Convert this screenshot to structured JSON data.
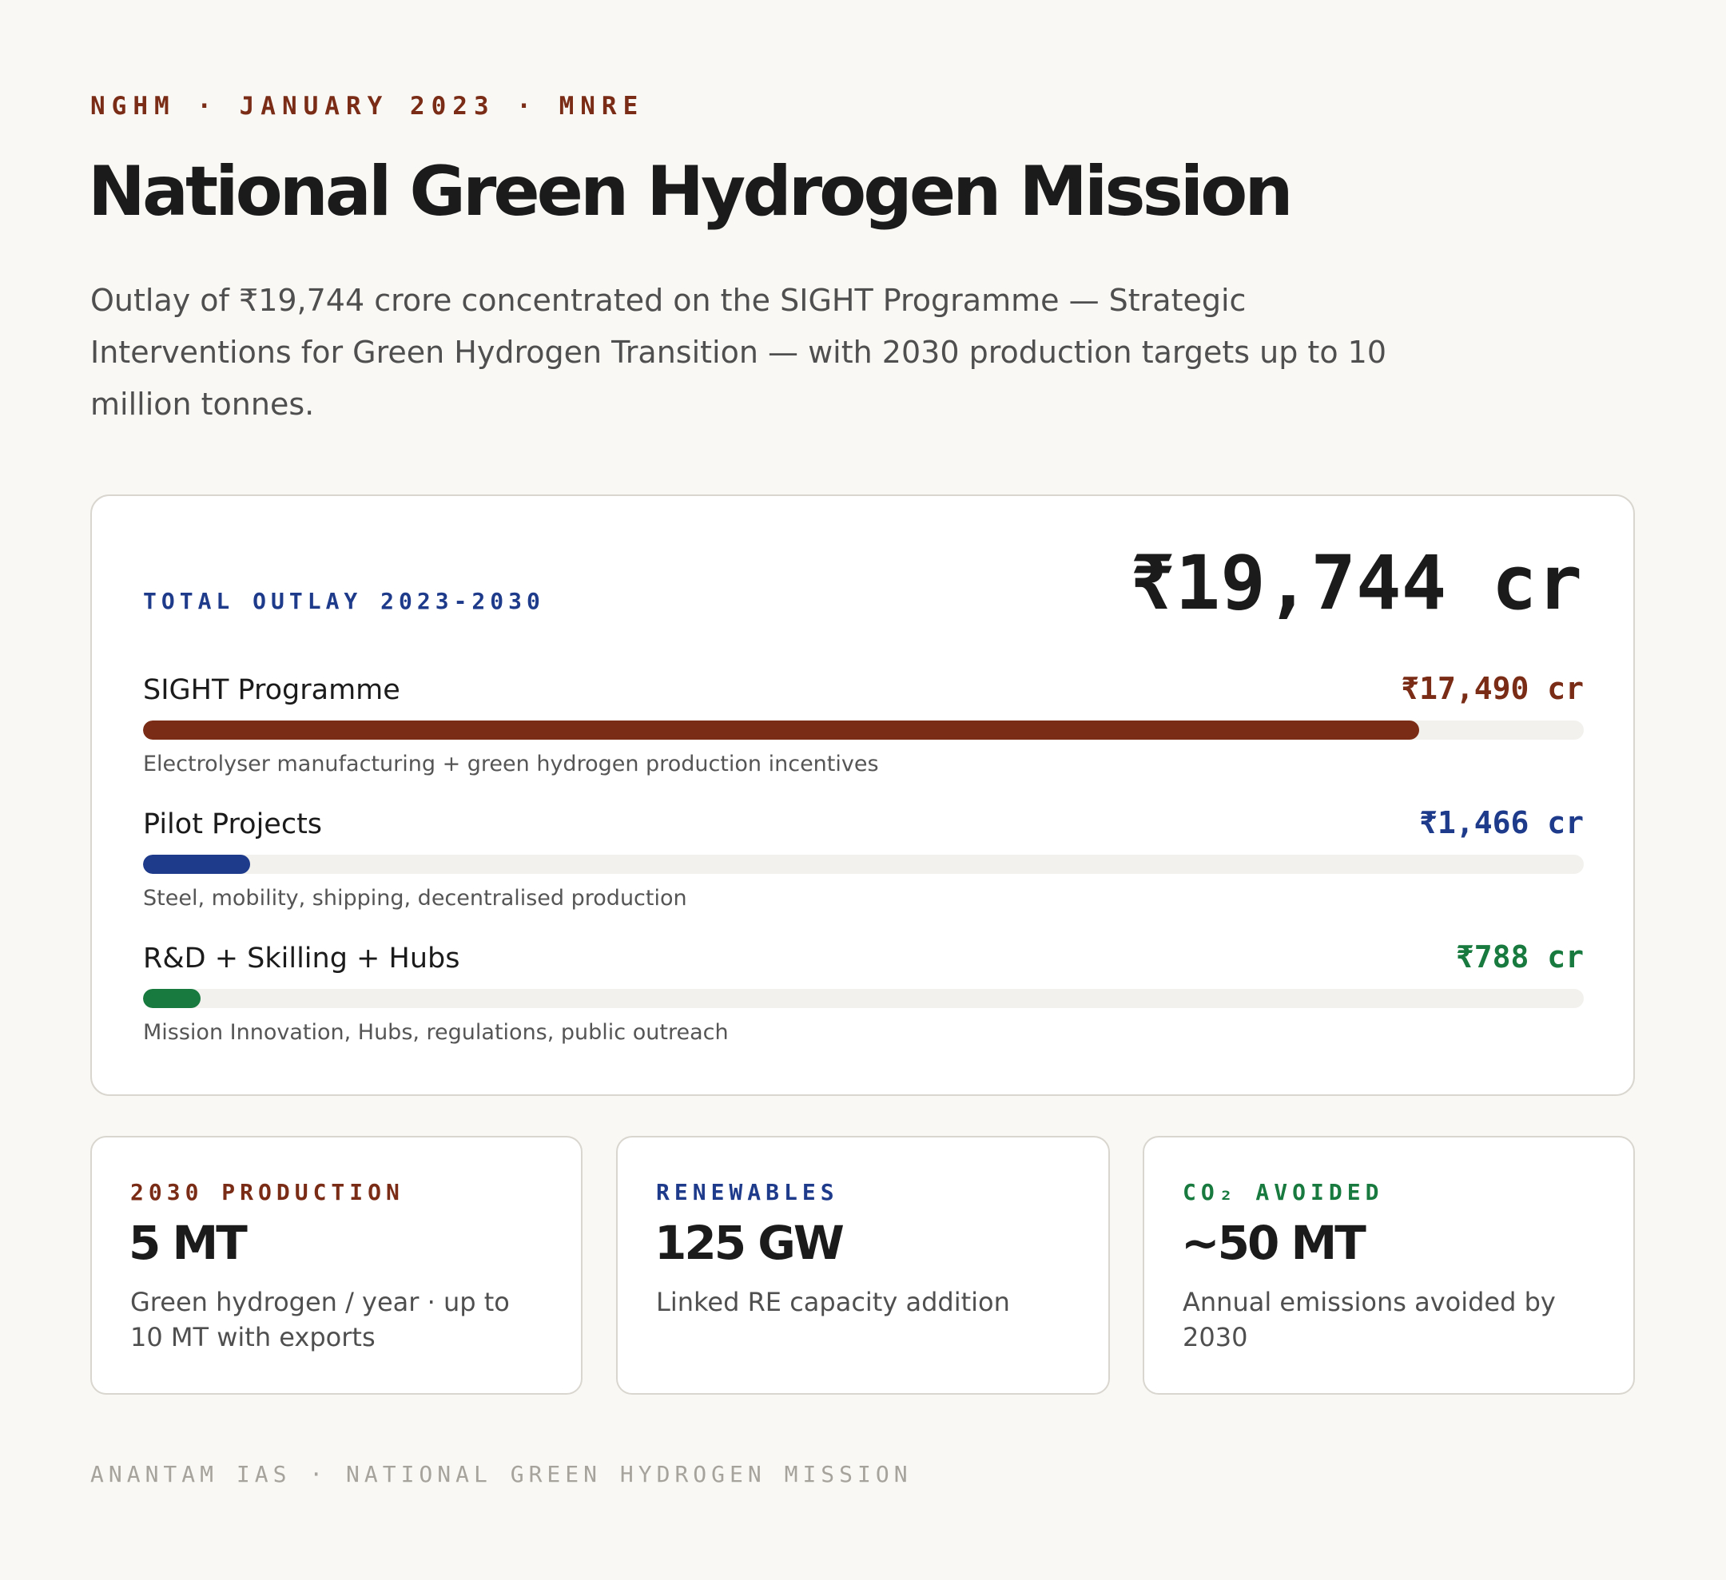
{
  "header": {
    "eyebrow": "NGHM · JANUARY 2023 · MNRE",
    "title": "National Green Hydrogen Mission",
    "lede": "Outlay of ₹19,744 crore concentrated on the SIGHT Programme — Strategic Interventions for Green Hydrogen Transition — with 2030 production targets up to 10 million tonnes."
  },
  "outlay_card": {
    "label": "TOTAL OUTLAY 2023-2030",
    "total": "₹19,744 cr"
  },
  "chart_data": {
    "type": "bar",
    "orientation": "horizontal",
    "title": "TOTAL OUTLAY 2023-2030",
    "unit": "₹ crore",
    "total": 19744,
    "xlim": [
      0,
      19744
    ],
    "categories": [
      "SIGHT Programme",
      "Pilot Projects",
      "R&D + Skilling + Hubs"
    ],
    "values": [
      17490,
      1466,
      788
    ],
    "value_labels": [
      "₹17,490 cr",
      "₹1,466 cr",
      "₹788 cr"
    ],
    "notes": [
      "Electrolyser manufacturing + green hydrogen production incentives",
      "Steel, mobility, shipping, decentralised production",
      "Mission Innovation, Hubs, regulations, public outreach"
    ],
    "colors": [
      "#7a2c16",
      "#1e3a8a",
      "#187a3e"
    ]
  },
  "stats": [
    {
      "label": "2030 PRODUCTION",
      "value": "5 MT",
      "desc": "Green hydrogen / year · up to 10 MT with exports",
      "color": "#7a2c16"
    },
    {
      "label": "RENEWABLES",
      "value": "125 GW",
      "desc": "Linked RE capacity addition",
      "color": "#1e3a8a"
    },
    {
      "label": "CO₂ AVOIDED",
      "value": "~50 MT",
      "desc": "Annual emissions avoided by 2030",
      "color": "#187a3e"
    }
  ],
  "footer": "ANANTAM IAS · NATIONAL GREEN HYDROGEN MISSION"
}
